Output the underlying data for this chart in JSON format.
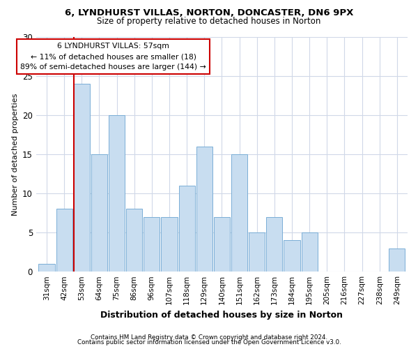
{
  "title1": "6, LYNDHURST VILLAS, NORTON, DONCASTER, DN6 9PX",
  "title2": "Size of property relative to detached houses in Norton",
  "xlabel": "Distribution of detached houses by size in Norton",
  "ylabel": "Number of detached properties",
  "categories": [
    "31sqm",
    "42sqm",
    "53sqm",
    "64sqm",
    "75sqm",
    "86sqm",
    "96sqm",
    "107sqm",
    "118sqm",
    "129sqm",
    "140sqm",
    "151sqm",
    "162sqm",
    "173sqm",
    "184sqm",
    "195sqm",
    "205sqm",
    "216sqm",
    "227sqm",
    "238sqm",
    "249sqm"
  ],
  "values": [
    1,
    8,
    24,
    15,
    20,
    8,
    7,
    7,
    11,
    16,
    7,
    15,
    5,
    7,
    4,
    5,
    0,
    0,
    0,
    0,
    3
  ],
  "bar_color": "#c8ddf0",
  "bar_edge_color": "#7aaed6",
  "highlight_index": 2,
  "highlight_line_color": "#cc0000",
  "annotation_text": "6 LYNDHURST VILLAS: 57sqm\n← 11% of detached houses are smaller (18)\n89% of semi-detached houses are larger (144) →",
  "annotation_box_color": "#ffffff",
  "annotation_box_edge": "#cc0000",
  "ylim": [
    0,
    30
  ],
  "yticks": [
    0,
    5,
    10,
    15,
    20,
    25,
    30
  ],
  "footer1": "Contains HM Land Registry data © Crown copyright and database right 2024.",
  "footer2": "Contains public sector information licensed under the Open Government Licence v3.0.",
  "bg_color": "#ffffff",
  "grid_color": "#d0d8e8"
}
